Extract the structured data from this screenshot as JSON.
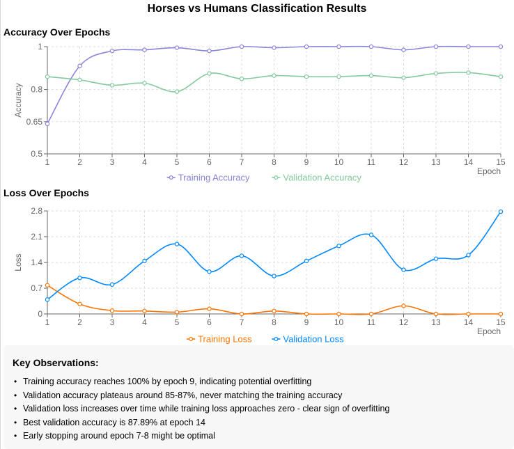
{
  "main_title": "Horses vs Humans Classification Results",
  "observations": {
    "title": "Key Observations:",
    "items": [
      "Training accuracy reaches 100% by epoch 9, indicating potential overfitting",
      "Validation accuracy plateaus around 85-87%, never matching the training accuracy",
      "Validation loss increases over time while training loss approaches zero - clear sign of overfitting",
      "Best validation accuracy is 87.89% at epoch 14",
      "Early stopping around epoch 7-8 might be optimal"
    ]
  },
  "chart_data": [
    {
      "type": "line",
      "title": "Accuracy Over Epochs",
      "xlabel": "Epoch",
      "ylabel": "Accuracy",
      "x": [
        1,
        2,
        3,
        4,
        5,
        6,
        7,
        8,
        9,
        10,
        11,
        12,
        13,
        14,
        15
      ],
      "ylim": [
        0.5,
        1.0
      ],
      "yticks": [
        0.5,
        0.65,
        0.8,
        1
      ],
      "grid": true,
      "legend": "bottom",
      "series": [
        {
          "name": "Training Accuracy",
          "color": "#8884d8",
          "values": [
            0.64,
            0.91,
            0.98,
            0.985,
            0.995,
            0.98,
            1.0,
            0.995,
            1.0,
            1.0,
            1.0,
            0.985,
            1.0,
            1.0,
            1.0
          ]
        },
        {
          "name": "Validation Accuracy",
          "color": "#82ca9d",
          "values": [
            0.86,
            0.845,
            0.82,
            0.83,
            0.79,
            0.875,
            0.85,
            0.865,
            0.86,
            0.86,
            0.865,
            0.855,
            0.875,
            0.8789,
            0.86
          ]
        }
      ]
    },
    {
      "type": "line",
      "title": "Loss Over Epochs",
      "xlabel": "Epoch",
      "ylabel": "Loss",
      "x": [
        1,
        2,
        3,
        4,
        5,
        6,
        7,
        8,
        9,
        10,
        11,
        12,
        13,
        14,
        15
      ],
      "ylim": [
        0,
        2.8
      ],
      "yticks": [
        0,
        0.7,
        1.4,
        2.1,
        2.8
      ],
      "grid": true,
      "legend": "bottom",
      "series": [
        {
          "name": "Training Loss",
          "color": "#ff7300",
          "values": [
            0.78,
            0.27,
            0.09,
            0.08,
            0.05,
            0.14,
            0.0,
            0.08,
            0.0,
            0.0,
            0.0,
            0.22,
            0.0,
            0.0,
            0.0
          ]
        },
        {
          "name": "Validation Loss",
          "color": "#0088fe",
          "values": [
            0.39,
            0.98,
            0.8,
            1.44,
            1.9,
            1.15,
            1.58,
            1.03,
            1.44,
            1.85,
            2.15,
            1.2,
            1.5,
            1.6,
            2.78
          ]
        }
      ]
    }
  ]
}
